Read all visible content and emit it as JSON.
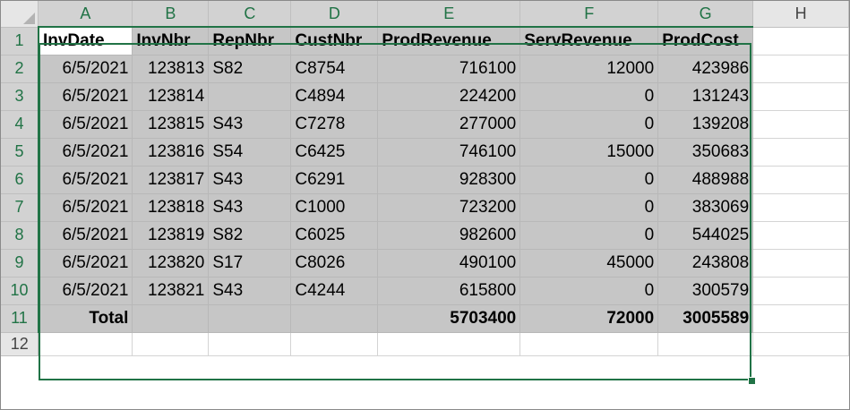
{
  "columns": [
    "A",
    "B",
    "C",
    "D",
    "E",
    "F",
    "G",
    "H"
  ],
  "row_numbers": [
    "1",
    "2",
    "3",
    "4",
    "5",
    "6",
    "7",
    "8",
    "9",
    "10",
    "11",
    "12"
  ],
  "headers": [
    "InvDate",
    "InvNbr",
    "RepNbr",
    "CustNbr",
    "ProdRevenue",
    "ServRevenue",
    "ProdCost"
  ],
  "rows": [
    [
      "6/5/2021",
      "123813",
      "S82",
      "C8754",
      "716100",
      "12000",
      "423986"
    ],
    [
      "6/5/2021",
      "123814",
      "",
      "C4894",
      "224200",
      "0",
      "131243"
    ],
    [
      "6/5/2021",
      "123815",
      "S43",
      "C7278",
      "277000",
      "0",
      "139208"
    ],
    [
      "6/5/2021",
      "123816",
      "S54",
      "C6425",
      "746100",
      "15000",
      "350683"
    ],
    [
      "6/5/2021",
      "123817",
      "S43",
      "C6291",
      "928300",
      "0",
      "488988"
    ],
    [
      "6/5/2021",
      "123818",
      "S43",
      "C1000",
      "723200",
      "0",
      "383069"
    ],
    [
      "6/5/2021",
      "123819",
      "S82",
      "C6025",
      "982600",
      "0",
      "544025"
    ],
    [
      "6/5/2021",
      "123820",
      "S17",
      "C8026",
      "490100",
      "45000",
      "243808"
    ],
    [
      "6/5/2021",
      "123821",
      "S43",
      "C4244",
      "615800",
      "0",
      "300579"
    ]
  ],
  "total_row": [
    "Total",
    "",
    "",
    "",
    "5703400",
    "72000",
    "3005589"
  ],
  "colors": {
    "selection_border": "#217346",
    "selection_fill": "#c6c6c6",
    "header_bg": "#e6e6e6",
    "gridline": "#d4d4d4"
  },
  "selected_range": "A1:G11",
  "active_cell": "A1"
}
